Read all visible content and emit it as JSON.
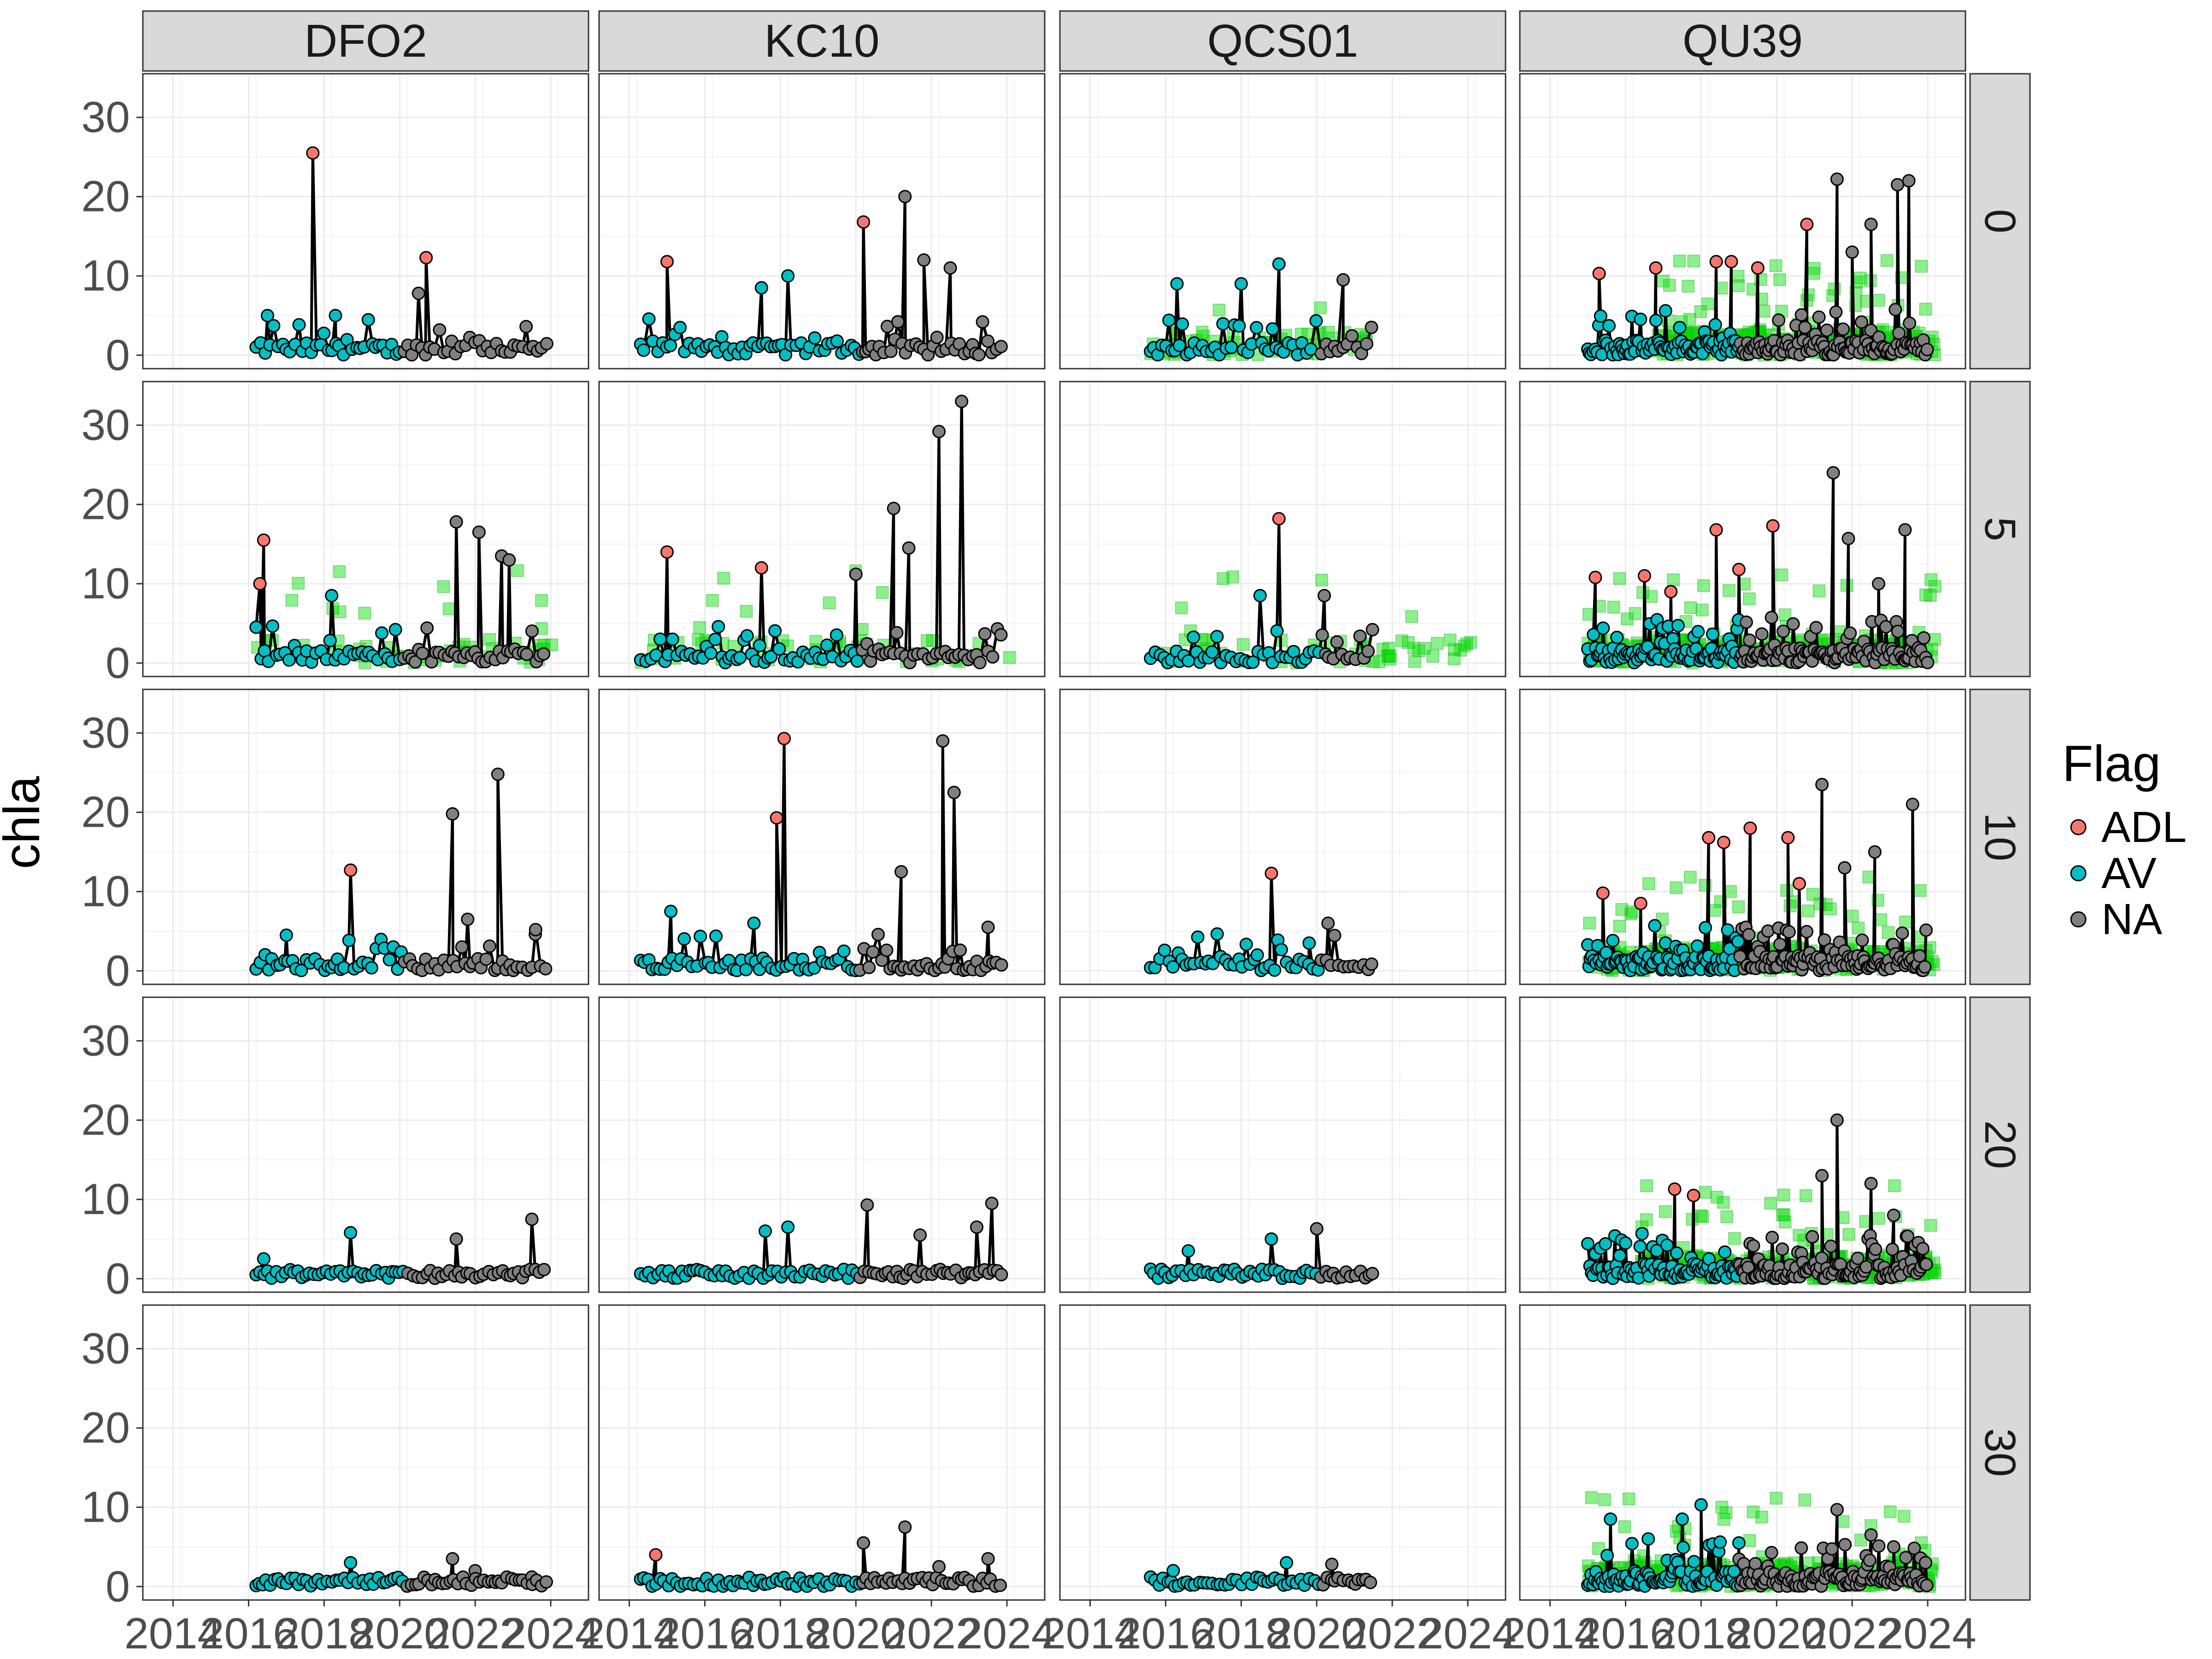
{
  "chart_data": {
    "type": "line",
    "ylabel": "chla",
    "xlabel": "",
    "x_ticks": [
      "2014",
      "2016",
      "2018",
      "2020",
      "2022",
      "2024"
    ],
    "y_ticks": [
      "0",
      "10",
      "20",
      "30"
    ],
    "xlim": [
      2013.2,
      2025.0
    ],
    "ylim": [
      -1.7,
      35.5
    ],
    "grid": true,
    "columns": [
      "DFO2",
      "KC10",
      "QCS01",
      "QU39"
    ],
    "rows": [
      "0",
      "5",
      "10",
      "20",
      "30"
    ],
    "legend": {
      "title": "Flag",
      "position": "right",
      "entries": [
        {
          "label": "ADL",
          "color": "#F8766D"
        },
        {
          "label": "AV",
          "color": "#00BFC4"
        },
        {
          "label": "NA",
          "color": "#808080"
        }
      ]
    },
    "overlay_color": "#00DD00",
    "spans": {
      "DFO2": [
        2016.2,
        2023.9
      ],
      "KC10": [
        2014.3,
        2023.9
      ],
      "QCS01": [
        2015.6,
        2021.5
      ],
      "QU39": [
        2015.0,
        2024.0
      ]
    },
    "cutoffs": {
      "DFO2": 2020.1,
      "KC10": 2020.1,
      "QCS01": 2020.1,
      "QU39": 2019.0
    },
    "peaks": {
      "DFO2|0": [
        [
          2017.7,
          25.5,
          "ADL"
        ],
        [
          2020.7,
          12.3,
          "ADL"
        ],
        [
          2016.5,
          5,
          "AV"
        ],
        [
          2018.3,
          5,
          "AV"
        ],
        [
          2020.5,
          7.8,
          "NA"
        ]
      ],
      "KC10|0": [
        [
          2015.0,
          11.8,
          "ADL"
        ],
        [
          2020.2,
          16.8,
          "ADL"
        ],
        [
          2021.3,
          20,
          "NA"
        ],
        [
          2021.8,
          12,
          "NA"
        ],
        [
          2022.5,
          11,
          "NA"
        ],
        [
          2018.2,
          10,
          "AV"
        ],
        [
          2017.5,
          8.5,
          "AV"
        ]
      ],
      "QCS01|0": [
        [
          2016.3,
          9,
          "AV"
        ],
        [
          2018.0,
          9,
          "AV"
        ],
        [
          2019.0,
          11.5,
          "AV"
        ],
        [
          2020.7,
          9.5,
          "NA"
        ]
      ],
      "QU39|0": [
        [
          2015.3,
          10.3,
          "ADL"
        ],
        [
          2016.8,
          11,
          "ADL"
        ],
        [
          2018.4,
          11.8,
          "ADL"
        ],
        [
          2018.8,
          11.8,
          "ADL"
        ],
        [
          2019.5,
          11,
          "ADL"
        ],
        [
          2020.8,
          16.5,
          "ADL"
        ],
        [
          2021.6,
          22.2,
          "NA"
        ],
        [
          2022.0,
          13,
          "NA"
        ],
        [
          2022.5,
          16.5,
          "NA"
        ],
        [
          2023.2,
          21.5,
          "NA"
        ],
        [
          2023.5,
          22,
          "NA"
        ]
      ],
      "DFO2|5": [
        [
          2016.4,
          15.5,
          "ADL"
        ],
        [
          2016.3,
          10,
          "ADL"
        ],
        [
          2018.2,
          8.5,
          "AV"
        ],
        [
          2021.5,
          17.8,
          "NA"
        ],
        [
          2022.1,
          16.5,
          "NA"
        ],
        [
          2022.7,
          13.5,
          "NA"
        ],
        [
          2022.9,
          13,
          "NA"
        ]
      ],
      "KC10|5": [
        [
          2015.0,
          14,
          "ADL"
        ],
        [
          2017.5,
          12,
          "ADL"
        ],
        [
          2020.0,
          11.2,
          "NA"
        ],
        [
          2021.0,
          19.5,
          "NA"
        ],
        [
          2021.4,
          14.5,
          "NA"
        ],
        [
          2022.2,
          29.2,
          "NA"
        ],
        [
          2022.8,
          33,
          "NA"
        ]
      ],
      "QCS01|5": [
        [
          2019.0,
          18.2,
          "ADL"
        ],
        [
          2018.5,
          8.5,
          "AV"
        ],
        [
          2020.2,
          8.5,
          "NA"
        ]
      ],
      "QU39|5": [
        [
          2015.2,
          10.8,
          "ADL"
        ],
        [
          2016.5,
          11,
          "ADL"
        ],
        [
          2017.2,
          9,
          "ADL"
        ],
        [
          2018.4,
          16.8,
          "ADL"
        ],
        [
          2019.0,
          11.8,
          "ADL"
        ],
        [
          2019.9,
          17.3,
          "ADL"
        ],
        [
          2021.5,
          24,
          "NA"
        ],
        [
          2021.9,
          15.7,
          "NA"
        ],
        [
          2022.7,
          10,
          "NA"
        ],
        [
          2023.4,
          16.8,
          "NA"
        ]
      ],
      "DFO2|10": [
        [
          2018.7,
          12.7,
          "ADL"
        ],
        [
          2017.0,
          4.5,
          "AV"
        ],
        [
          2021.4,
          19.8,
          "NA"
        ],
        [
          2022.6,
          24.8,
          "NA"
        ],
        [
          2021.8,
          6.5,
          "NA"
        ],
        [
          2023.6,
          5.2,
          "NA"
        ]
      ],
      "KC10|10": [
        [
          2018.1,
          29.3,
          "ADL"
        ],
        [
          2017.9,
          19.3,
          "ADL"
        ],
        [
          2015.1,
          7.5,
          "AV"
        ],
        [
          2017.3,
          6,
          "AV"
        ],
        [
          2022.3,
          29,
          "NA"
        ],
        [
          2022.6,
          22.5,
          "NA"
        ],
        [
          2021.2,
          12.5,
          "NA"
        ],
        [
          2023.5,
          5.5,
          "NA"
        ]
      ],
      "QCS01|10": [
        [
          2018.8,
          12.3,
          "ADL"
        ],
        [
          2020.3,
          6,
          "NA"
        ],
        [
          2019.8,
          3.5,
          "AV"
        ]
      ],
      "QU39|10": [
        [
          2015.4,
          9.8,
          "ADL"
        ],
        [
          2016.4,
          8.5,
          "ADL"
        ],
        [
          2018.2,
          16.8,
          "ADL"
        ],
        [
          2018.6,
          16.2,
          "ADL"
        ],
        [
          2019.3,
          18,
          "ADL"
        ],
        [
          2020.3,
          16.8,
          "ADL"
        ],
        [
          2020.6,
          11,
          "ADL"
        ],
        [
          2021.2,
          23.5,
          "NA"
        ],
        [
          2021.8,
          13,
          "NA"
        ],
        [
          2022.6,
          15,
          "NA"
        ],
        [
          2023.6,
          21,
          "NA"
        ]
      ],
      "DFO2|20": [
        [
          2016.4,
          2.5,
          "AV"
        ],
        [
          2018.7,
          5.8,
          "AV"
        ],
        [
          2021.5,
          5,
          "NA"
        ],
        [
          2023.5,
          7.5,
          "NA"
        ]
      ],
      "KC10|20": [
        [
          2017.6,
          6,
          "AV"
        ],
        [
          2018.2,
          6.5,
          "AV"
        ],
        [
          2020.3,
          9.3,
          "NA"
        ],
        [
          2021.7,
          5.5,
          "NA"
        ],
        [
          2023.6,
          9.5,
          "NA"
        ],
        [
          2023.2,
          6.5,
          "NA"
        ]
      ],
      "QCS01|20": [
        [
          2016.6,
          3.5,
          "AV"
        ],
        [
          2018.8,
          5,
          "AV"
        ],
        [
          2020.0,
          6.3,
          "NA"
        ]
      ],
      "QU39|20": [
        [
          2017.3,
          11.3,
          "ADL"
        ],
        [
          2017.8,
          10.5,
          "ADL"
        ],
        [
          2021.2,
          13,
          "NA"
        ],
        [
          2021.6,
          20,
          "NA"
        ],
        [
          2022.5,
          12,
          "NA"
        ],
        [
          2023.1,
          8,
          "NA"
        ],
        [
          2016.0,
          4.5,
          "AV"
        ]
      ],
      "DFO2|30": [
        [
          2018.7,
          3,
          "AV"
        ],
        [
          2021.4,
          3.5,
          "NA"
        ],
        [
          2022.0,
          2,
          "NA"
        ],
        [
          2023.5,
          1.2,
          "NA"
        ]
      ],
      "KC10|30": [
        [
          2014.7,
          4,
          "ADL"
        ],
        [
          2020.2,
          5.5,
          "NA"
        ],
        [
          2021.3,
          7.5,
          "NA"
        ],
        [
          2022.2,
          2.5,
          "NA"
        ],
        [
          2023.5,
          3.5,
          "NA"
        ]
      ],
      "QCS01|30": [
        [
          2016.2,
          2,
          "AV"
        ],
        [
          2019.2,
          3,
          "AV"
        ],
        [
          2020.4,
          2.8,
          "NA"
        ]
      ],
      "QU39|30": [
        [
          2015.6,
          8.5,
          "AV"
        ],
        [
          2016.6,
          6,
          "AV"
        ],
        [
          2017.5,
          8.5,
          "AV"
        ],
        [
          2018.0,
          10.3,
          "AV"
        ],
        [
          2019.0,
          5.5,
          "AV"
        ],
        [
          2021.6,
          9.7,
          "NA"
        ],
        [
          2022.5,
          6.5,
          "NA"
        ],
        [
          2023.1,
          5,
          "NA"
        ]
      ]
    }
  }
}
